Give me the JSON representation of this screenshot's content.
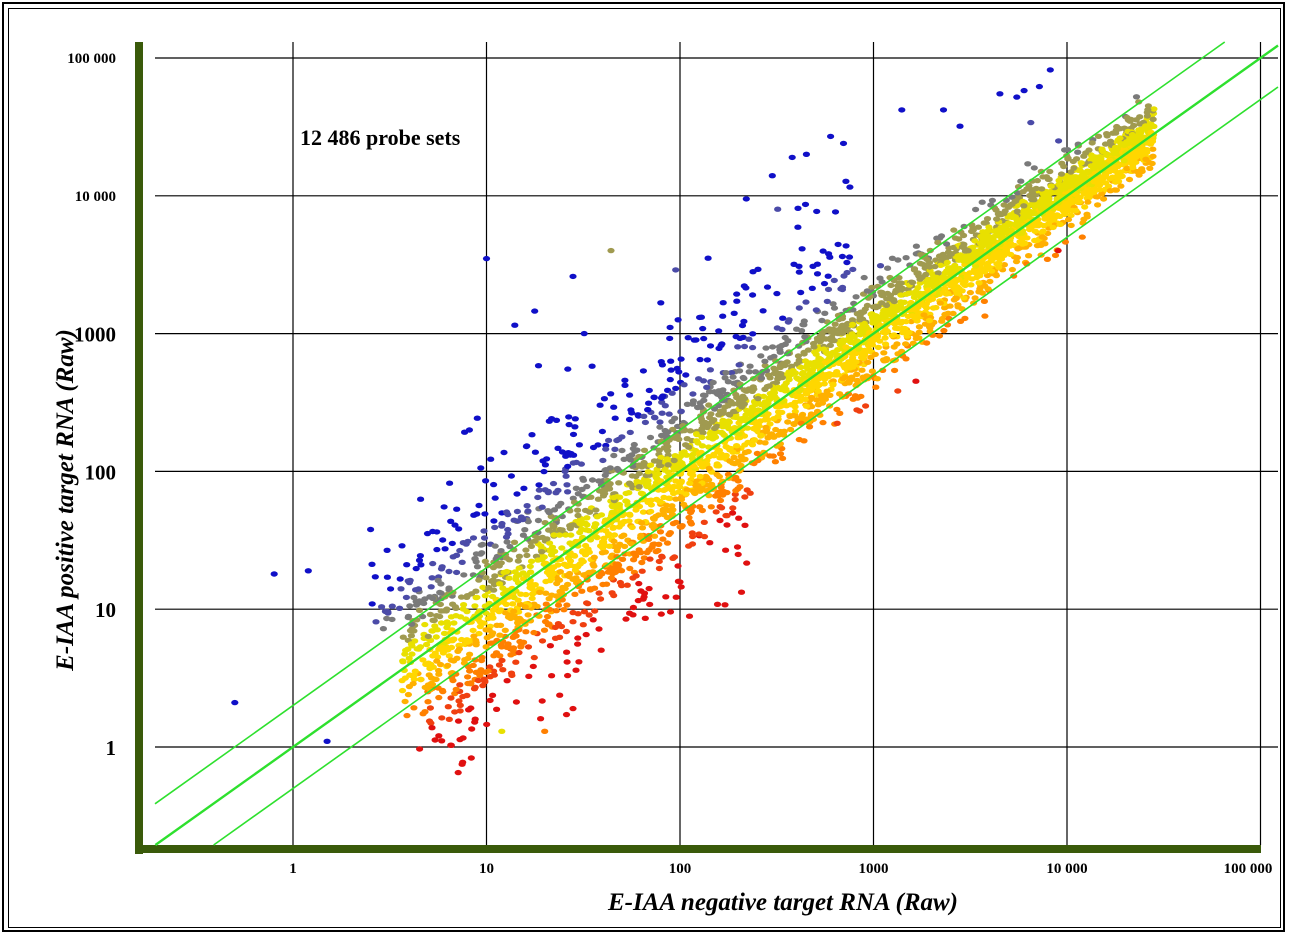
{
  "chart_data": {
    "type": "scatter",
    "xscale": "log",
    "yscale": "log",
    "xlim": [
      0.2,
      100000
    ],
    "ylim": [
      0.2,
      100000
    ],
    "x_ticks": [
      1,
      10,
      100,
      1000,
      10000,
      100000
    ],
    "x_tick_labels": [
      "1",
      "10",
      "100",
      "1000",
      "10 000",
      "100 000"
    ],
    "y_ticks": [
      1,
      10,
      100,
      1000,
      10000,
      100000
    ],
    "y_tick_labels": [
      "1",
      "10",
      "100",
      "1000",
      "10 000",
      "100 000"
    ],
    "xlabel": "E-IAA negative target RNA (Raw)",
    "ylabel": "E-IAA positive target RNA (Raw)",
    "annotation": "12 486 probe sets",
    "grid": true,
    "reference_lines": [
      {
        "name": "",
        "ratio": 1,
        "color": "#2ee02e"
      },
      {
        "name": "",
        "ratio": 2,
        "color": "#2ee02e"
      },
      {
        "name": "",
        "ratio": 0.5,
        "color": "#2ee02e"
      }
    ],
    "colors": {
      "axis": "#3a5a0a",
      "grid": "#000000",
      "points": [
        "#1010c8",
        "#4b4ba8",
        "#7a7a7a",
        "#a09a50",
        "#e8e000",
        "#ffd700",
        "#ffb000",
        "#ff8000",
        "#f04010",
        "#e01010"
      ]
    },
    "highlighted_points": [
      {
        "x": 0.5,
        "y": 2.1,
        "color": "#1010c8"
      },
      {
        "x": 0.8,
        "y": 18,
        "color": "#1010c8"
      },
      {
        "x": 1.2,
        "y": 19,
        "color": "#1010c8"
      },
      {
        "x": 1.5,
        "y": 1.1,
        "color": "#1010c8"
      },
      {
        "x": 10,
        "y": 3500,
        "color": "#1010c8"
      },
      {
        "x": 14,
        "y": 1150,
        "color": "#1010c8"
      },
      {
        "x": 28,
        "y": 2600,
        "color": "#1010c8"
      },
      {
        "x": 32,
        "y": 1000,
        "color": "#1010c8"
      },
      {
        "x": 220,
        "y": 9500,
        "color": "#1010c8"
      },
      {
        "x": 300,
        "y": 14000,
        "color": "#1010c8"
      },
      {
        "x": 380,
        "y": 19000,
        "color": "#1010c8"
      },
      {
        "x": 450,
        "y": 20000,
        "color": "#1010c8"
      },
      {
        "x": 600,
        "y": 27000,
        "color": "#1010c8"
      },
      {
        "x": 700,
        "y": 24000,
        "color": "#1010c8"
      },
      {
        "x": 1400,
        "y": 42000,
        "color": "#1010c8"
      },
      {
        "x": 2300,
        "y": 42000,
        "color": "#1010c8"
      },
      {
        "x": 2800,
        "y": 32000,
        "color": "#1010c8"
      },
      {
        "x": 4500,
        "y": 55000,
        "color": "#1010c8"
      },
      {
        "x": 5500,
        "y": 52000,
        "color": "#1010c8"
      },
      {
        "x": 6000,
        "y": 58000,
        "color": "#1010c8"
      },
      {
        "x": 7200,
        "y": 62000,
        "color": "#1010c8"
      },
      {
        "x": 8200,
        "y": 82000,
        "color": "#1010c8"
      },
      {
        "x": 6500,
        "y": 34000,
        "color": "#4b4ba8"
      },
      {
        "x": 320,
        "y": 8000,
        "color": "#4b4ba8"
      },
      {
        "x": 44,
        "y": 4000,
        "color": "#a09a50"
      },
      {
        "x": 95,
        "y": 2900,
        "color": "#4b4ba8"
      },
      {
        "x": 9000,
        "y": 4000,
        "color": "#e01010"
      },
      {
        "x": 6200,
        "y": 3200,
        "color": "#ff8000"
      },
      {
        "x": 12,
        "y": 1.3,
        "color": "#e8e000"
      },
      {
        "x": 20,
        "y": 1.3,
        "color": "#ff8000"
      },
      {
        "x": 28,
        "y": 1.9,
        "color": "#e01010"
      },
      {
        "x": 200,
        "y": 25,
        "color": "#e01010"
      }
    ]
  }
}
